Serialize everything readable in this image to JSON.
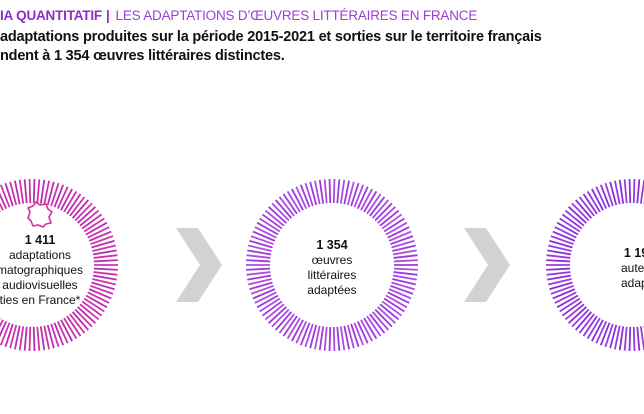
{
  "header": {
    "kicker_bold": "IA QUANTITATIF",
    "kicker_sep": "|",
    "kicker_rest": "LES ADAPTATIONS D’ŒUVRES LITTÉRAIRES EN FRANCE",
    "intro_line1": "adaptations produites sur la période 2015-2021 et sorties sur le territoire français",
    "intro_line2": "ndent à 1 354 œuvres littéraires distinctes."
  },
  "circles": [
    {
      "ring_color_a": "#d6329a",
      "ring_color_b": "#b12fc2",
      "icon": "france-map-icon",
      "number": "1 411",
      "lines": [
        "adaptations",
        "matographiques",
        "audiovisuelles",
        "ties en France*"
      ]
    },
    {
      "ring_color_a": "#9a3be0",
      "ring_color_b": "#b04bdc",
      "number": "1 354",
      "lines": [
        "œuvres",
        "littéraires",
        "adaptées"
      ]
    },
    {
      "ring_color_a": "#8b2fd6",
      "ring_color_b": "#9a3be0",
      "number": "1 19",
      "lines": [
        "auteu",
        "adapt"
      ]
    }
  ],
  "colors": {
    "arrow": "#d2d2d2",
    "accent": "#8e2bd0"
  }
}
